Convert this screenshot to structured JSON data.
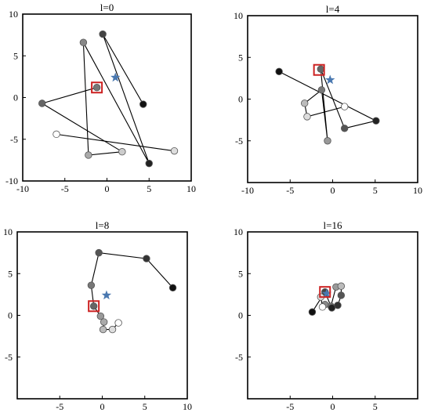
{
  "chart_data": [
    {
      "type": "line",
      "title": "l=0",
      "xlim": [
        -10,
        10
      ],
      "ylim": [
        -10,
        10
      ],
      "xticks": [
        "-10",
        "-5",
        "0",
        "5",
        "10"
      ],
      "yticks": [
        "10",
        "5",
        "0",
        "-5",
        "-10"
      ],
      "grid": false,
      "target": {
        "x": 1.0,
        "y": 2.4
      },
      "highlight": {
        "x": -1.2,
        "y": 1.2
      },
      "path": [
        {
          "x": 4.3,
          "y": -0.8,
          "fill": "#111111"
        },
        {
          "x": -0.5,
          "y": 7.6,
          "fill": "#444444"
        },
        {
          "x": 5.0,
          "y": -7.9,
          "fill": "#222222"
        },
        {
          "x": -2.8,
          "y": 6.6,
          "fill": "#888888"
        },
        {
          "x": -2.2,
          "y": -6.9,
          "fill": "#aaaaaa"
        },
        {
          "x": 1.8,
          "y": -6.5,
          "fill": "#cccccc"
        },
        {
          "x": -7.7,
          "y": -0.7,
          "fill": "#666666"
        },
        {
          "x": -1.2,
          "y": 1.2,
          "fill": "#777777"
        }
      ],
      "extra_segments": [
        {
          "from": {
            "x": 8.0,
            "y": -6.4,
            "fill": "#dddddd"
          },
          "to": {
            "x": -6.0,
            "y": -4.4,
            "fill": "#ffffff"
          }
        }
      ]
    },
    {
      "type": "line",
      "title": "l=4",
      "xlim": [
        -10,
        10
      ],
      "ylim": [
        -10,
        10
      ],
      "xticks": [
        "-10",
        "-5",
        "0",
        "5",
        "10"
      ],
      "yticks": [
        "10",
        "5",
        "0",
        "-5"
      ],
      "grid": false,
      "target": {
        "x": -0.3,
        "y": 2.3
      },
      "highlight": {
        "x": -1.6,
        "y": 3.5
      },
      "path": [
        {
          "x": -6.3,
          "y": 3.3,
          "fill": "#111111"
        },
        {
          "x": 5.1,
          "y": -2.6,
          "fill": "#222222"
        },
        {
          "x": 1.4,
          "y": -3.5,
          "fill": "#555555"
        },
        {
          "x": -1.4,
          "y": 3.6,
          "fill": "#666666"
        },
        {
          "x": -0.6,
          "y": -5.0,
          "fill": "#999999"
        },
        {
          "x": -1.3,
          "y": 1.1,
          "fill": "#777777"
        },
        {
          "x": -3.3,
          "y": -0.5,
          "fill": "#bbbbbb"
        },
        {
          "x": -3.0,
          "y": -2.1,
          "fill": "#dddddd"
        },
        {
          "x": 1.4,
          "y": -0.9,
          "fill": "#ffffff"
        }
      ],
      "extra_segments": []
    },
    {
      "type": "line",
      "title": "l=8",
      "xlim": [
        -10,
        10
      ],
      "ylim": [
        -10,
        10
      ],
      "xticks": [
        "-5",
        "0",
        "5",
        "10"
      ],
      "yticks": [
        "10",
        "5",
        "0",
        "-5"
      ],
      "grid": false,
      "target": {
        "x": 0.5,
        "y": 2.4
      },
      "highlight": {
        "x": -1.0,
        "y": 1.1
      },
      "path": [
        {
          "x": 8.3,
          "y": 3.3,
          "fill": "#111111"
        },
        {
          "x": 5.2,
          "y": 6.8,
          "fill": "#333333"
        },
        {
          "x": -0.4,
          "y": 7.5,
          "fill": "#555555"
        },
        {
          "x": -1.3,
          "y": 3.6,
          "fill": "#777777"
        },
        {
          "x": -1.0,
          "y": 1.1,
          "fill": "#666666"
        },
        {
          "x": -0.2,
          "y": -0.1,
          "fill": "#999999"
        },
        {
          "x": 0.2,
          "y": -0.8,
          "fill": "#aaaaaa"
        },
        {
          "x": 0.1,
          "y": -1.7,
          "fill": "#bbbbbb"
        },
        {
          "x": 1.2,
          "y": -1.7,
          "fill": "#dddddd"
        },
        {
          "x": 1.9,
          "y": -0.9,
          "fill": "#ffffff"
        }
      ],
      "extra_segments": []
    },
    {
      "type": "line",
      "title": "l=16",
      "xlim": [
        -10,
        10
      ],
      "ylim": [
        -10,
        10
      ],
      "xticks": [
        "-5",
        "0",
        "5"
      ],
      "yticks": [
        "10",
        "5",
        "0",
        "-5"
      ],
      "grid": false,
      "target": {
        "x": -0.7,
        "y": 2.6
      },
      "highlight": {
        "x": -0.9,
        "y": 2.8
      },
      "path": [
        {
          "x": -2.4,
          "y": 0.4,
          "fill": "#111111"
        },
        {
          "x": -0.9,
          "y": 2.8,
          "fill": "#444444"
        },
        {
          "x": -0.2,
          "y": 1.1,
          "fill": "#777777"
        },
        {
          "x": 0.4,
          "y": 3.4,
          "fill": "#999999"
        },
        {
          "x": 1.0,
          "y": 3.5,
          "fill": "#bbbbbb"
        },
        {
          "x": 1.0,
          "y": 2.4,
          "fill": "#555555"
        },
        {
          "x": 0.6,
          "y": 1.2,
          "fill": "#333333"
        },
        {
          "x": -0.1,
          "y": 0.9,
          "fill": "#222222"
        },
        {
          "x": -0.9,
          "y": 1.3,
          "fill": "#888888"
        },
        {
          "x": -1.2,
          "y": 1.0,
          "fill": "#ffffff"
        },
        {
          "x": -1.4,
          "y": 2.2,
          "fill": "#dddddd"
        }
      ],
      "extra_segments": []
    }
  ],
  "colors": {
    "axis": "#000000",
    "line": "#000000",
    "target_star": "#4a78b0",
    "highlight_box": "#cc2222",
    "marker_stroke": "#555555"
  }
}
